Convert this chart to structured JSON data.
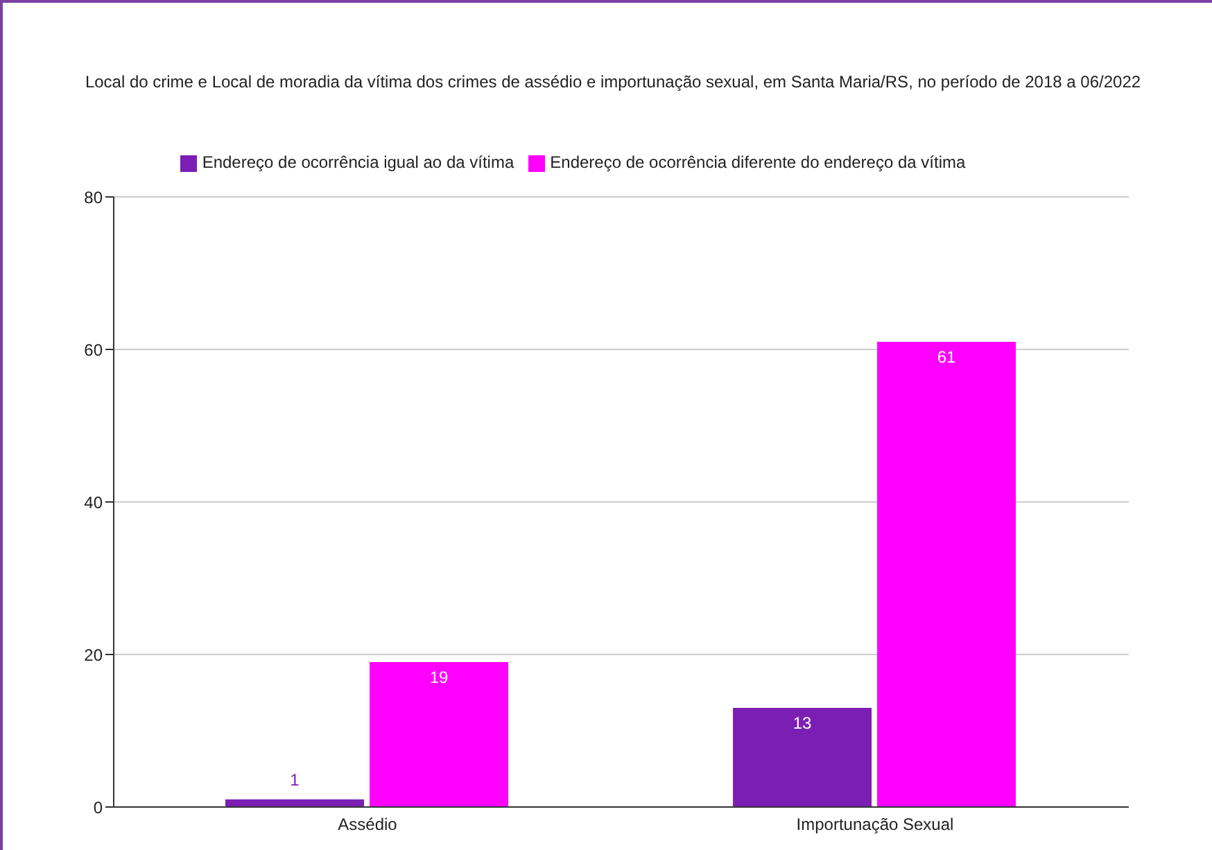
{
  "chart_data": {
    "type": "bar",
    "title": "Local do crime e Local de moradia da vítima dos  crimes de assédio e importunação sexual, em Santa Maria/RS, no período de 2018 a 06/2022",
    "categories": [
      "Assédio",
      "Importunação Sexual"
    ],
    "series": [
      {
        "name": "Endereço de ocorrência igual ao da vítima",
        "color": "#7b1fb4",
        "values": [
          1,
          13
        ]
      },
      {
        "name": "Endereço de ocorrência diferente do endereço da vítima",
        "color": "#ff00ff",
        "values": [
          19,
          61
        ]
      }
    ],
    "ylim": [
      0,
      80
    ],
    "yticks": [
      0,
      20,
      40,
      60,
      80
    ],
    "grid": "y",
    "legend": "top",
    "data_labels": true
  }
}
